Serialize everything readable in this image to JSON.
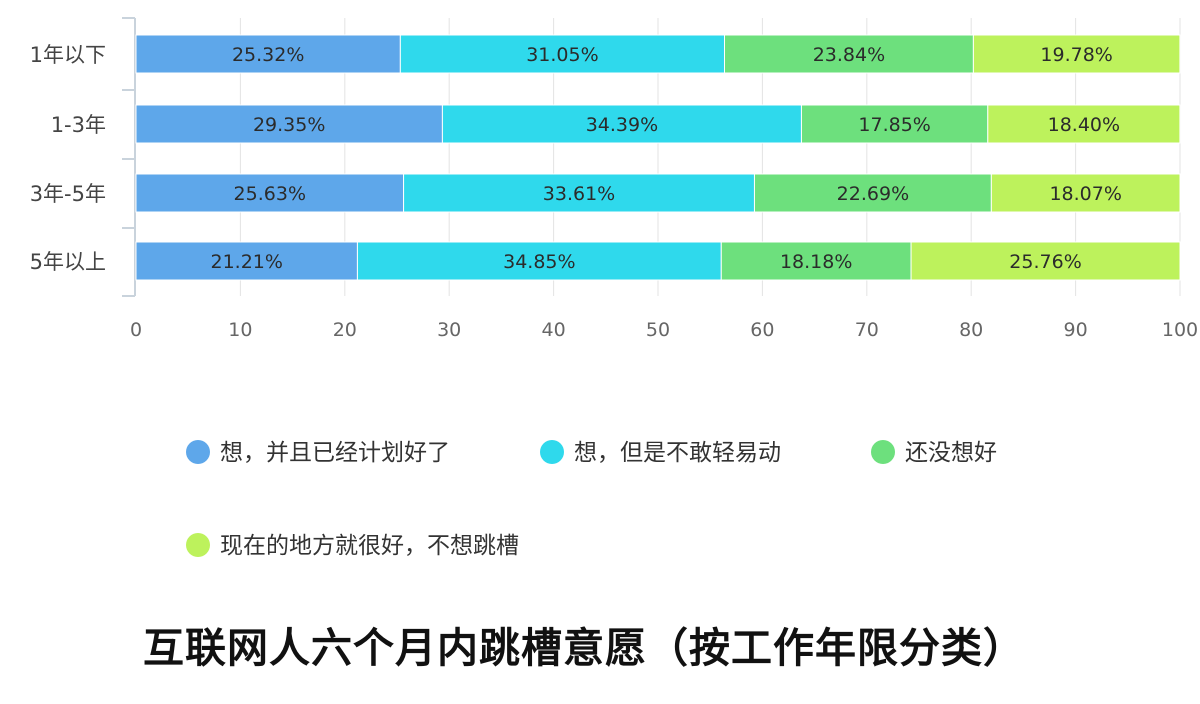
{
  "chart_data": {
    "type": "bar",
    "orientation": "horizontal",
    "stacked": true,
    "title": "互联网人六个月内跳槽意愿（按工作年限分类）",
    "xlabel": "",
    "ylabel": "",
    "categories": [
      "1年以下",
      "1-3年",
      "3年-5年",
      "5年以上"
    ],
    "series": [
      {
        "name": "想，并且已经计划好了",
        "color": "#5ea7ea",
        "values": [
          25.32,
          29.35,
          25.63,
          21.21
        ],
        "labels": [
          "25.32%",
          "29.35%",
          "25.63%",
          "21.21%"
        ]
      },
      {
        "name": "想，但是不敢轻易动",
        "color": "#2fd9ec",
        "values": [
          31.05,
          34.39,
          33.61,
          34.85
        ],
        "labels": [
          "31.05%",
          "34.39%",
          "33.61%",
          "34.85%"
        ]
      },
      {
        "name": "还没想好",
        "color": "#6de07d",
        "values": [
          23.84,
          17.85,
          22.69,
          18.18
        ],
        "labels": [
          "23.84%",
          "17.85%",
          "22.69%",
          "18.18%"
        ]
      },
      {
        "name": "现在的地方就很好，不想跳槽",
        "color": "#bdf25c",
        "values": [
          19.78,
          18.4,
          18.07,
          25.76
        ],
        "labels": [
          "19.78%",
          "18.40%",
          "18.07%",
          "25.76%"
        ]
      }
    ],
    "xlim": [
      0,
      100
    ],
    "xticks": [
      0,
      10,
      20,
      30,
      40,
      50,
      60,
      70,
      80,
      90,
      100
    ],
    "grid": true,
    "legend_position": "bottom"
  }
}
